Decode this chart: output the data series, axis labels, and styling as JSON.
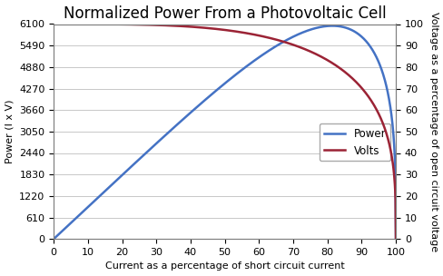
{
  "title": "Normalized Power From a Photovoltaic Cell",
  "xlabel": "Current as a percentage of short circuit current",
  "ylabel_left": "Power (I x V)",
  "ylabel_right": "Voltage as a percentage of open circuit voltage",
  "x_ticks": [
    0,
    10,
    20,
    30,
    40,
    50,
    60,
    70,
    80,
    90,
    100
  ],
  "y_left_ticks": [
    0,
    610,
    1220,
    1830,
    2440,
    3050,
    3660,
    4270,
    4880,
    5490,
    6100
  ],
  "y_right_ticks": [
    0,
    10,
    20,
    30,
    40,
    50,
    60,
    70,
    80,
    90,
    100
  ],
  "xlim": [
    0,
    100
  ],
  "ylim_left": [
    0,
    6100
  ],
  "ylim_right": [
    0,
    100
  ],
  "power_color": "#4472C4",
  "volts_color": "#9B2335",
  "legend_power": "Power",
  "legend_volts": "Volts",
  "background_color": "#FFFFFF",
  "grid_color": "#C8C8C8",
  "title_fontsize": 12,
  "axis_label_fontsize": 8,
  "tick_fontsize": 8,
  "legend_fontsize": 8.5,
  "figsize": [
    4.89,
    3.04
  ],
  "dpi": 100
}
